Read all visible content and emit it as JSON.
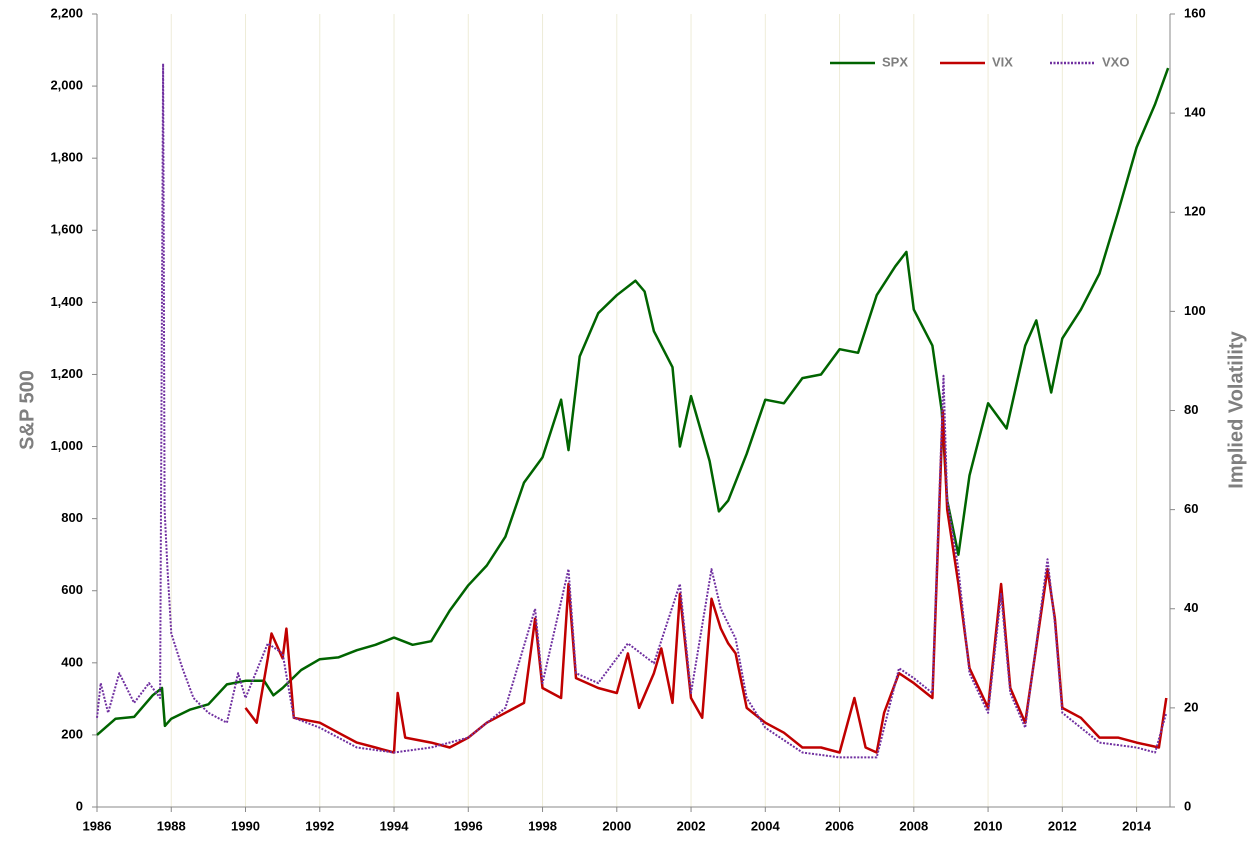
{
  "chart_data": {
    "type": "line",
    "y_label": "S&P 500",
    "y2_label": "Implied Volatility",
    "xlim": [
      1986,
      2014.9
    ],
    "xticks": [
      1986,
      1988,
      1990,
      1992,
      1994,
      1996,
      1998,
      2000,
      2002,
      2004,
      2006,
      2008,
      2010,
      2012,
      2014
    ],
    "ylim": [
      0,
      2200
    ],
    "yticks": [
      0,
      200,
      400,
      600,
      800,
      {
        "value": 1000,
        "label": "1,000"
      },
      {
        "value": 1200,
        "label": "1,200"
      },
      {
        "value": 1400,
        "label": "1,400"
      },
      {
        "value": 1600,
        "label": "1,600"
      },
      {
        "value": 1800,
        "label": "1,800"
      },
      {
        "value": 2000,
        "label": "2,000"
      },
      {
        "value": 2200,
        "label": "2,200"
      }
    ],
    "y2lim": [
      0,
      160
    ],
    "y2ticks": [
      0,
      20,
      40,
      60,
      80,
      100,
      120,
      140,
      160
    ],
    "grid": "x",
    "legend": "top-right",
    "series": [
      {
        "name": "SPX",
        "color": "#006400",
        "dash": false,
        "x": [
          1986.0,
          1986.5,
          1987.0,
          1987.5,
          1987.75,
          1987.83,
          1988.0,
          1988.5,
          1989.0,
          1989.5,
          1990.0,
          1990.5,
          1990.75,
          1991.0,
          1991.5,
          1992.0,
          1992.5,
          1993.0,
          1993.5,
          1994.0,
          1994.5,
          1995.0,
          1995.5,
          1996.0,
          1996.5,
          1997.0,
          1997.5,
          1998.0,
          1998.5,
          1998.7,
          1999.0,
          1999.5,
          2000.0,
          2000.5,
          2000.75,
          2001.0,
          2001.5,
          2001.7,
          2002.0,
          2002.5,
          2002.75,
          2003.0,
          2003.5,
          2004.0,
          2004.5,
          2005.0,
          2005.5,
          2006.0,
          2006.5,
          2007.0,
          2007.5,
          2007.8,
          2008.0,
          2008.5,
          2008.75,
          2008.9,
          2009.2,
          2009.5,
          2010.0,
          2010.5,
          2011.0,
          2011.3,
          2011.7,
          2012.0,
          2012.5,
          2013.0,
          2013.5,
          2014.0,
          2014.5,
          2014.85
        ],
        "values": [
          200,
          245,
          250,
          310,
          330,
          225,
          245,
          270,
          285,
          340,
          350,
          350,
          310,
          330,
          380,
          410,
          415,
          435,
          450,
          470,
          450,
          460,
          545,
          615,
          670,
          750,
          900,
          970,
          1130,
          990,
          1250,
          1370,
          1420,
          1460,
          1430,
          1320,
          1220,
          1000,
          1140,
          960,
          820,
          850,
          980,
          1130,
          1120,
          1190,
          1200,
          1270,
          1260,
          1420,
          1500,
          1540,
          1380,
          1280,
          1100,
          850,
          700,
          920,
          1120,
          1050,
          1280,
          1350,
          1150,
          1300,
          1380,
          1480,
          1650,
          1830,
          1950,
          2050
        ]
      },
      {
        "name": "VIX",
        "color": "#c00000",
        "dash": false,
        "axis": "y2",
        "x": [
          1990.0,
          1990.3,
          1990.6,
          1990.7,
          1991.0,
          1991.1,
          1991.3,
          1992.0,
          1992.5,
          1993.0,
          1993.5,
          1994.0,
          1994.1,
          1994.3,
          1995.0,
          1995.5,
          1996.0,
          1996.5,
          1997.0,
          1997.5,
          1997.8,
          1998.0,
          1998.5,
          1998.7,
          1998.9,
          1999.5,
          2000.0,
          2000.3,
          2000.6,
          2001.0,
          2001.2,
          2001.5,
          2001.7,
          2002.0,
          2002.3,
          2002.55,
          2002.8,
          2003.0,
          2003.2,
          2003.5,
          2004.0,
          2004.5,
          2005.0,
          2005.5,
          2006.0,
          2006.4,
          2006.7,
          2007.0,
          2007.2,
          2007.6,
          2008.0,
          2008.5,
          2008.78,
          2008.9,
          2009.2,
          2009.5,
          2010.0,
          2010.35,
          2010.6,
          2011.0,
          2011.6,
          2011.8,
          2012.0,
          2012.5,
          2013.0,
          2013.5,
          2014.0,
          2014.6,
          2014.8
        ],
        "values": [
          20,
          17,
          30,
          35,
          30,
          36,
          18,
          17,
          15,
          13,
          12,
          11,
          23,
          14,
          13,
          12,
          14,
          17,
          19,
          21,
          38,
          24,
          22,
          45,
          26,
          24,
          23,
          31,
          20,
          27,
          32,
          21,
          43,
          22,
          18,
          42,
          36,
          33,
          31,
          20,
          17,
          15,
          12,
          12,
          11,
          22,
          12,
          11,
          19,
          27,
          25,
          22,
          80,
          60,
          45,
          28,
          20,
          45,
          24,
          17,
          48,
          38,
          20,
          18,
          14,
          14,
          13,
          12,
          22
        ]
      },
      {
        "name": "VXO",
        "color": "#7030a0",
        "dash": true,
        "axis": "y2",
        "x": [
          1986.0,
          1986.1,
          1986.3,
          1986.6,
          1987.0,
          1987.4,
          1987.7,
          1987.78,
          1987.82,
          1987.9,
          1988.0,
          1988.3,
          1988.6,
          1989.0,
          1989.5,
          1989.8,
          1990.0,
          1990.6,
          1991.0,
          1991.3,
          1992.0,
          1993.0,
          1994.0,
          1995.0,
          1996.0,
          1997.0,
          1997.8,
          1998.0,
          1998.7,
          1998.9,
          1999.5,
          2000.3,
          2001.0,
          2001.7,
          2002.0,
          2002.55,
          2002.8,
          2003.2,
          2003.5,
          2004.0,
          2005.0,
          2006.0,
          2007.0,
          2007.6,
          2008.0,
          2008.5,
          2008.8,
          2008.9,
          2009.2,
          2009.5,
          2010.0,
          2010.35,
          2010.6,
          2011.0,
          2011.6,
          2011.8,
          2012.0,
          2013.0,
          2014.0,
          2014.5,
          2014.8
        ],
        "values": [
          18,
          25,
          19,
          27,
          21,
          25,
          22,
          150,
          60,
          48,
          35,
          28,
          22,
          19,
          17,
          27,
          22,
          33,
          31,
          18,
          16,
          12,
          11,
          12,
          14,
          20,
          40,
          25,
          48,
          27,
          25,
          33,
          29,
          45,
          23,
          48,
          40,
          34,
          22,
          16,
          11,
          10,
          10,
          28,
          26,
          23,
          87,
          62,
          48,
          27,
          19,
          43,
          23,
          16,
          50,
          37,
          19,
          13,
          12,
          11,
          19
        ]
      }
    ]
  }
}
